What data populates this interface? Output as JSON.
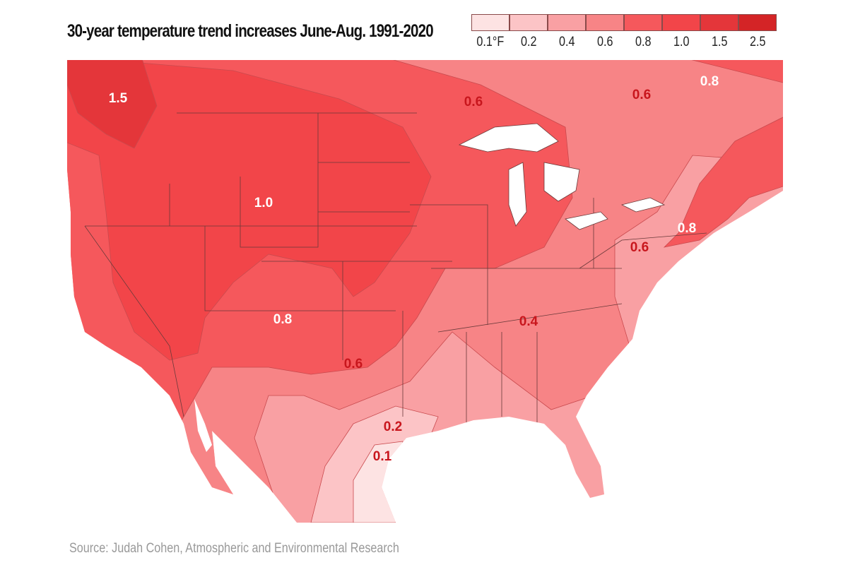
{
  "title": "30-year temperature trend increases June-Aug. 1991-2020",
  "legend": [
    {
      "label": "0.1°F",
      "color": "#fde3e3"
    },
    {
      "label": "0.2",
      "color": "#fcc4c6"
    },
    {
      "label": "0.4",
      "color": "#f9a0a3"
    },
    {
      "label": "0.6",
      "color": "#f78486"
    },
    {
      "label": "0.8",
      "color": "#f5585c"
    },
    {
      "label": "1.0",
      "color": "#f24549"
    },
    {
      "label": "1.5",
      "color": "#e4363a"
    },
    {
      "label": "2.5",
      "color": "#d42426"
    }
  ],
  "map_labels": [
    {
      "text": "1.5",
      "tone": "light"
    },
    {
      "text": "0.6",
      "tone": "dark"
    },
    {
      "text": "0.6",
      "tone": "dark"
    },
    {
      "text": "0.8",
      "tone": "light"
    },
    {
      "text": "1.0",
      "tone": "light"
    },
    {
      "text": "0.8",
      "tone": "light"
    },
    {
      "text": "0.6",
      "tone": "dark"
    },
    {
      "text": "0.8",
      "tone": "light"
    },
    {
      "text": "0.4",
      "tone": "dark"
    },
    {
      "text": "0.6",
      "tone": "dark"
    },
    {
      "text": "0.2",
      "tone": "dark"
    },
    {
      "text": "0.1",
      "tone": "dark"
    }
  ],
  "label_colors": {
    "light": "#ffffff",
    "dark": "#c8161d"
  },
  "source": "Source: Judah Cohen, Atmospheric and Environmental Research"
}
